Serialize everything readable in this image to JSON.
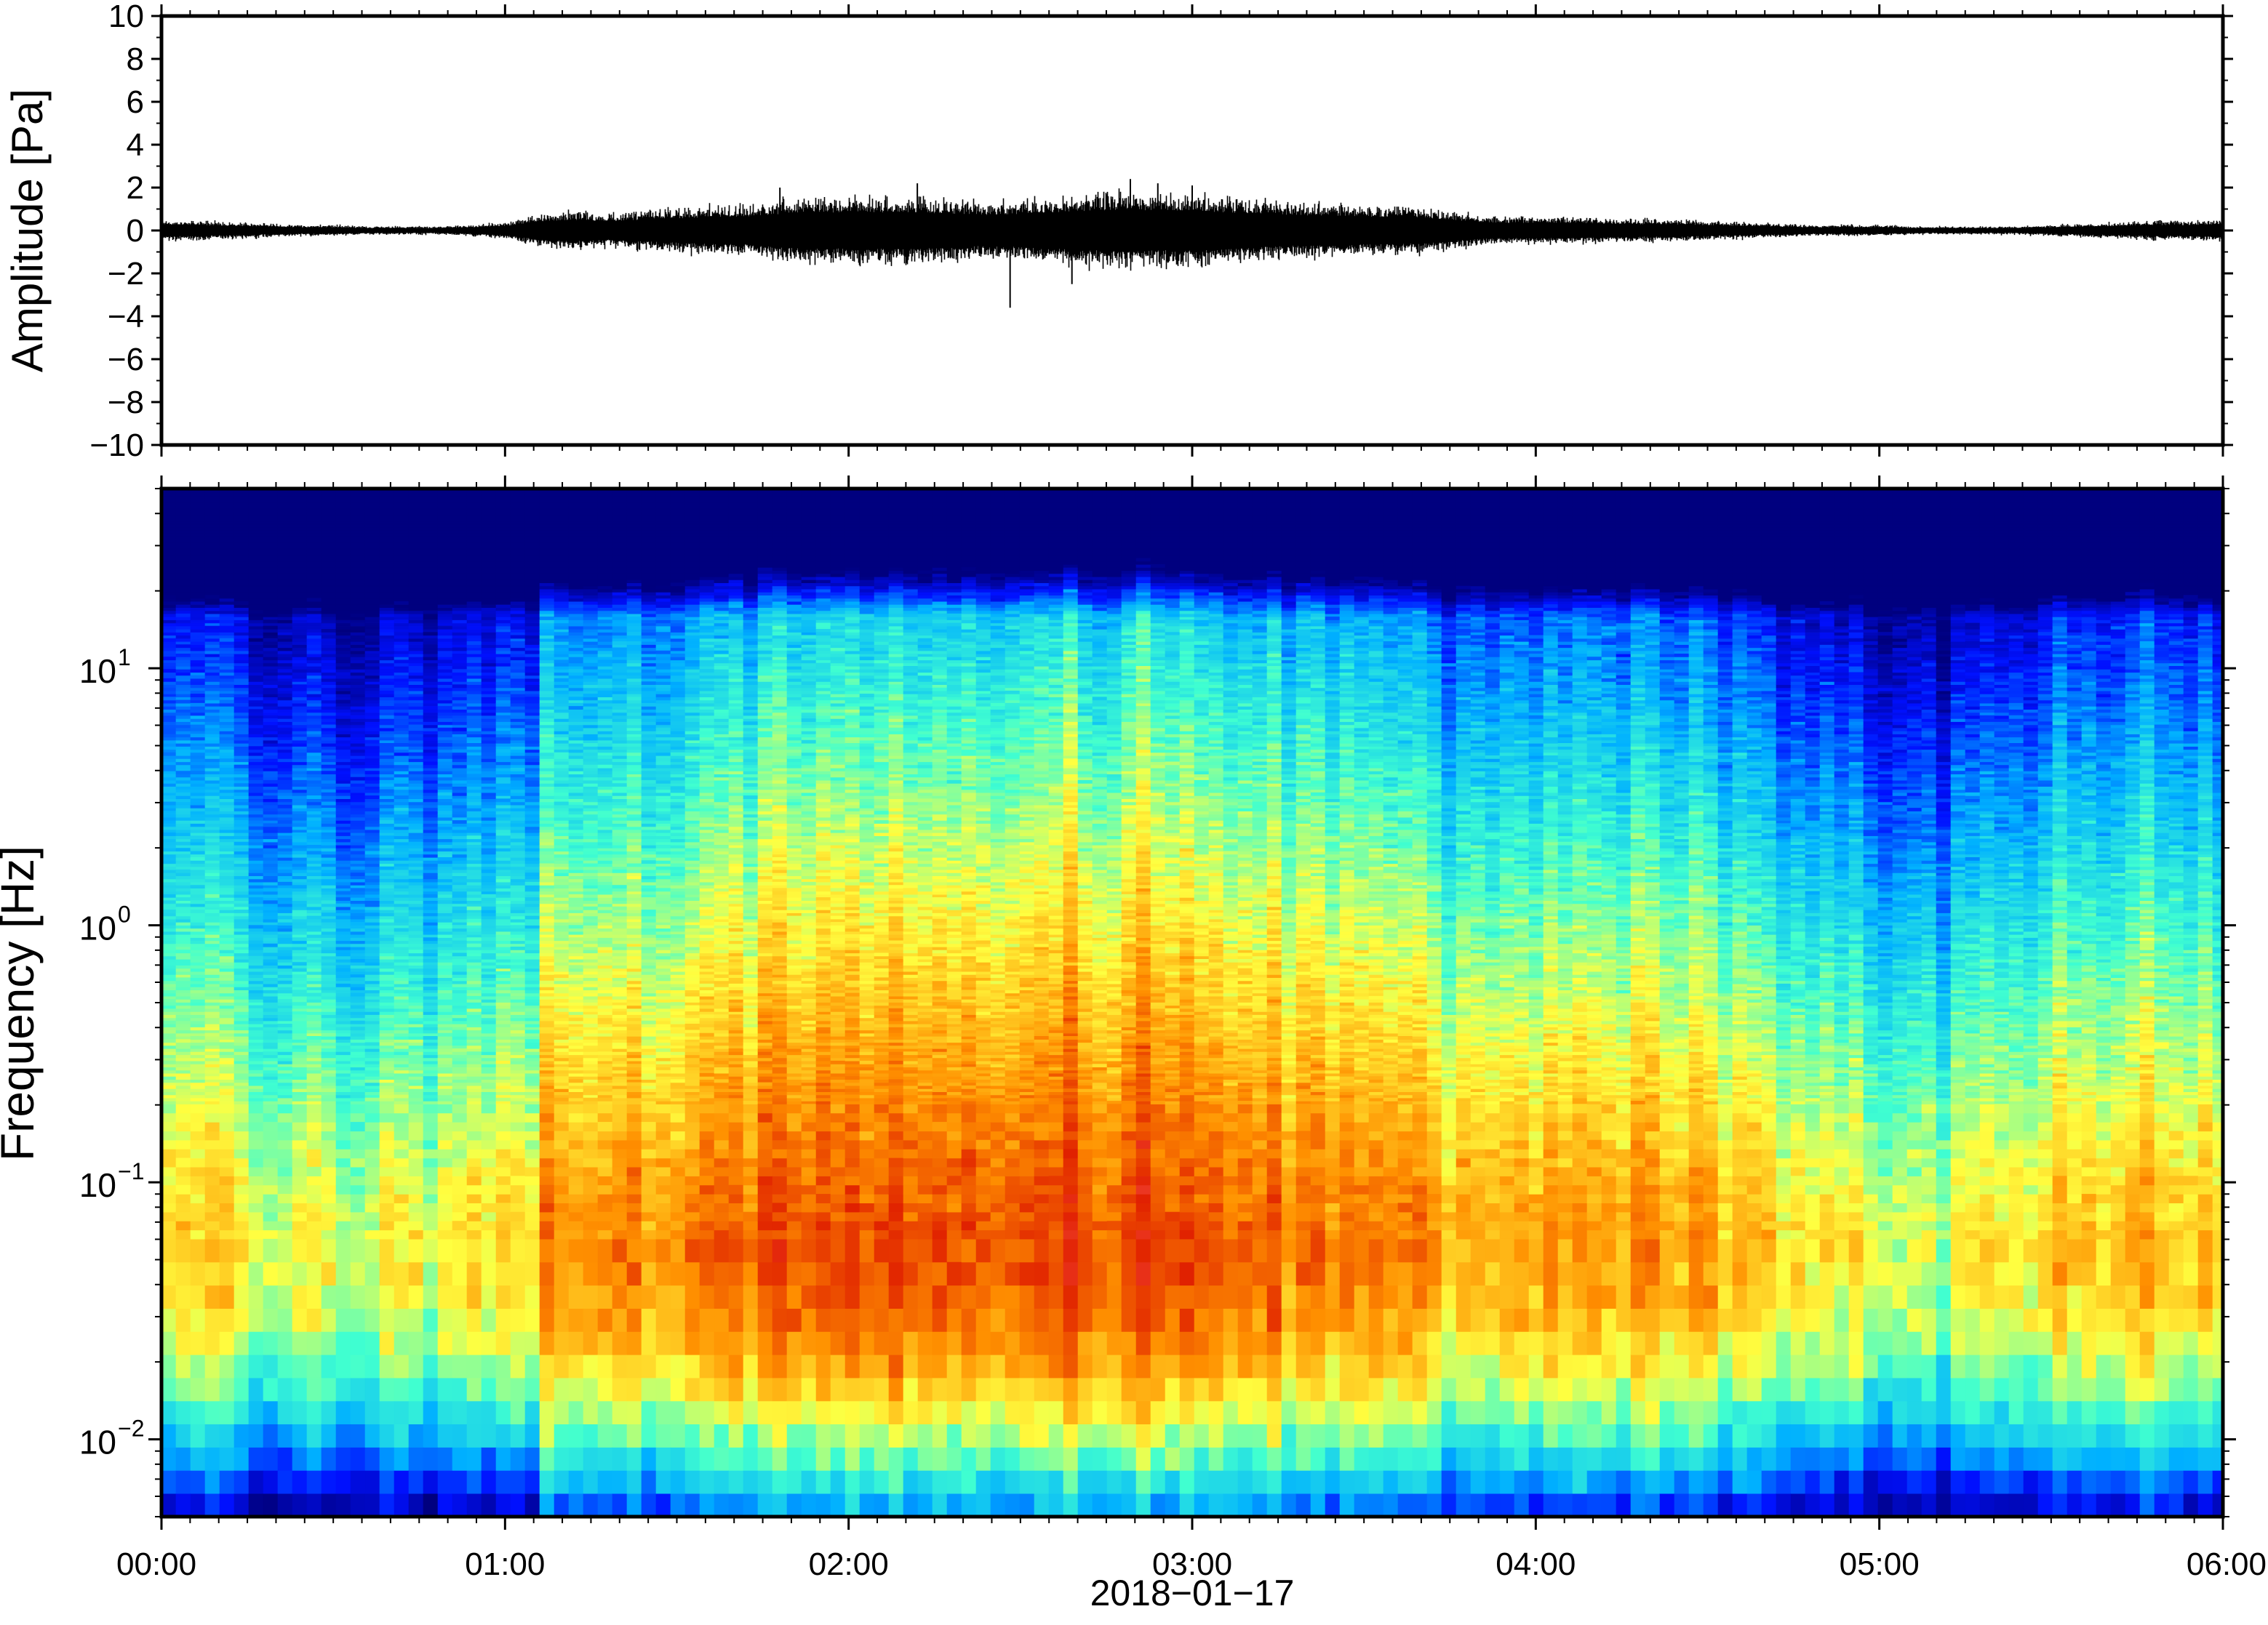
{
  "chart_data": [
    {
      "type": "line",
      "panel": "waveform",
      "xlabel": "",
      "ylabel": "Amplitude [Pa]",
      "ylim": [
        -10,
        10
      ],
      "y_ticks": [
        -10,
        -8,
        -6,
        -4,
        -2,
        0,
        2,
        4,
        6,
        8,
        10
      ],
      "y_tick_labels": [
        "−10",
        "−8",
        "−6",
        "−4",
        "−2",
        "0",
        "2",
        "4",
        "6",
        "8",
        "10"
      ],
      "xlim_hours": [
        0,
        6
      ],
      "envelope": {
        "t_hours": [
          0.0,
          0.1,
          0.2,
          0.3,
          0.4,
          0.5,
          0.6,
          0.7,
          0.8,
          0.9,
          1.0,
          1.1,
          1.2,
          1.3,
          1.4,
          1.5,
          1.6,
          1.7,
          1.8,
          1.9,
          2.0,
          2.1,
          2.2,
          2.3,
          2.4,
          2.5,
          2.6,
          2.7,
          2.8,
          2.9,
          3.0,
          3.1,
          3.2,
          3.3,
          3.4,
          3.5,
          3.6,
          3.7,
          3.8,
          3.9,
          4.0,
          4.1,
          4.2,
          4.3,
          4.4,
          4.5,
          4.6,
          4.7,
          4.8,
          4.9,
          5.0,
          5.1,
          5.2,
          5.3,
          5.4,
          5.5,
          5.6,
          5.7,
          5.8,
          5.9,
          6.0
        ],
        "amplitude": [
          0.4,
          0.35,
          0.3,
          0.25,
          0.2,
          0.2,
          0.15,
          0.15,
          0.15,
          0.2,
          0.3,
          0.6,
          0.7,
          0.6,
          0.7,
          0.8,
          0.9,
          0.9,
          1.1,
          1.2,
          1.2,
          1.2,
          1.2,
          1.1,
          1.0,
          1.1,
          1.2,
          1.3,
          1.4,
          1.3,
          1.3,
          1.2,
          1.1,
          1.0,
          1.0,
          0.9,
          0.9,
          0.8,
          0.6,
          0.5,
          0.5,
          0.5,
          0.45,
          0.4,
          0.4,
          0.35,
          0.3,
          0.25,
          0.2,
          0.2,
          0.2,
          0.15,
          0.15,
          0.15,
          0.15,
          0.2,
          0.25,
          0.3,
          0.35,
          0.35,
          0.4
        ]
      },
      "peaks": [
        {
          "t_hours": 1.8,
          "value": 2.0
        },
        {
          "t_hours": 2.2,
          "value": 2.2
        },
        {
          "t_hours": 2.47,
          "value": -3.6
        },
        {
          "t_hours": 2.65,
          "value": -2.5
        },
        {
          "t_hours": 2.82,
          "value": 2.4
        },
        {
          "t_hours": 2.9,
          "value": 2.2
        },
        {
          "t_hours": 3.0,
          "value": 2.1
        }
      ]
    },
    {
      "type": "heatmap",
      "panel": "spectrogram",
      "xlabel": "2018−01−17",
      "ylabel": "Frequency [Hz]",
      "y_scale": "log",
      "ylim_hz": [
        0.005,
        50
      ],
      "y_ticks_hz": [
        0.01,
        0.1,
        1,
        10
      ],
      "y_tick_labels": [
        {
          "base": "10",
          "exp": "−2"
        },
        {
          "base": "10",
          "exp": "−1"
        },
        {
          "base": "10",
          "exp": "0"
        },
        {
          "base": "10",
          "exp": "1"
        }
      ],
      "x_tick_labels": [
        "00:00",
        "01:00",
        "02:00",
        "03:00",
        "04:00",
        "05:00",
        "06:00"
      ],
      "xlim_hours": [
        0,
        6
      ],
      "colormap": [
        "#00007f",
        "#0010ff",
        "#00b0ff",
        "#40ffd0",
        "#ffff40",
        "#ff9000",
        "#e02000",
        "#ff6060"
      ],
      "peak_energy_freq_hz": 0.06,
      "peak_energy_time_hours": 2.8,
      "relative_level_over_time": [
        0.55,
        0.55,
        0.5,
        0.48,
        0.45,
        0.35,
        0.4,
        0.45,
        0.45,
        0.5,
        0.55,
        0.7,
        0.8,
        0.75,
        0.72,
        0.78,
        0.82,
        0.85,
        0.9,
        0.92,
        0.92,
        0.92,
        0.9,
        0.88,
        0.88,
        0.9,
        0.92,
        0.95,
        0.95,
        0.93,
        0.92,
        0.9,
        0.88,
        0.85,
        0.82,
        0.8,
        0.75,
        0.72,
        0.7,
        0.7,
        0.72,
        0.72,
        0.7,
        0.7,
        0.68,
        0.65,
        0.62,
        0.5,
        0.45,
        0.42,
        0.4,
        0.42,
        0.45,
        0.5,
        0.52,
        0.55,
        0.58,
        0.6,
        0.62,
        0.62,
        0.6
      ]
    }
  ]
}
